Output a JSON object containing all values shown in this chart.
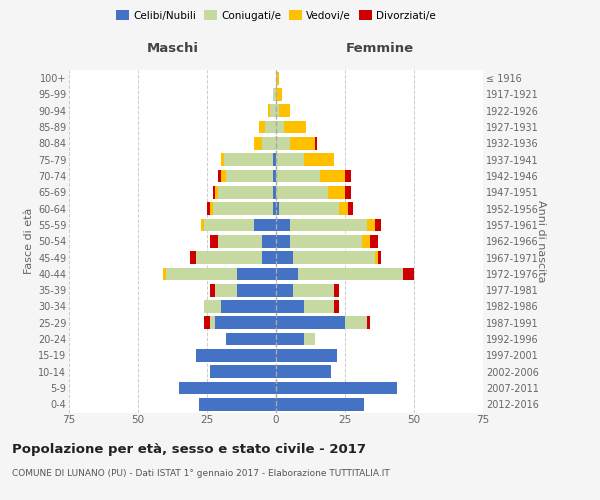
{
  "age_groups": [
    "0-4",
    "5-9",
    "10-14",
    "15-19",
    "20-24",
    "25-29",
    "30-34",
    "35-39",
    "40-44",
    "45-49",
    "50-54",
    "55-59",
    "60-64",
    "65-69",
    "70-74",
    "75-79",
    "80-84",
    "85-89",
    "90-94",
    "95-99",
    "100+"
  ],
  "birth_years": [
    "2012-2016",
    "2007-2011",
    "2002-2006",
    "1997-2001",
    "1992-1996",
    "1987-1991",
    "1982-1986",
    "1977-1981",
    "1972-1976",
    "1967-1971",
    "1962-1966",
    "1957-1961",
    "1952-1956",
    "1947-1951",
    "1942-1946",
    "1937-1941",
    "1932-1936",
    "1927-1931",
    "1922-1926",
    "1917-1921",
    "≤ 1916"
  ],
  "male_celibe": [
    28,
    35,
    24,
    29,
    18,
    22,
    20,
    14,
    14,
    5,
    5,
    8,
    1,
    1,
    1,
    1,
    0,
    0,
    0,
    0,
    0
  ],
  "male_coniugato": [
    0,
    0,
    0,
    0,
    0,
    2,
    6,
    8,
    26,
    24,
    16,
    18,
    22,
    20,
    17,
    18,
    5,
    4,
    2,
    1,
    0
  ],
  "male_vedovo": [
    0,
    0,
    0,
    0,
    0,
    0,
    0,
    0,
    1,
    0,
    0,
    1,
    1,
    1,
    2,
    1,
    3,
    2,
    1,
    0,
    0
  ],
  "male_divorziato": [
    0,
    0,
    0,
    0,
    0,
    2,
    0,
    2,
    0,
    2,
    3,
    0,
    1,
    1,
    1,
    0,
    0,
    0,
    0,
    0,
    0
  ],
  "female_celibe": [
    32,
    44,
    20,
    22,
    10,
    25,
    10,
    6,
    8,
    6,
    5,
    5,
    1,
    0,
    0,
    0,
    0,
    0,
    0,
    0,
    0
  ],
  "female_coniugata": [
    0,
    0,
    0,
    0,
    4,
    8,
    11,
    15,
    38,
    30,
    26,
    28,
    22,
    19,
    16,
    10,
    5,
    3,
    1,
    0,
    0
  ],
  "female_vedova": [
    0,
    0,
    0,
    0,
    0,
    0,
    0,
    0,
    0,
    1,
    3,
    3,
    3,
    6,
    9,
    11,
    9,
    8,
    4,
    2,
    1
  ],
  "female_divorziata": [
    0,
    0,
    0,
    0,
    0,
    1,
    2,
    2,
    4,
    1,
    3,
    2,
    2,
    2,
    2,
    0,
    1,
    0,
    0,
    0,
    0
  ],
  "colors": {
    "celibe": "#4472c4",
    "coniugato": "#c5d9a0",
    "vedovo": "#ffc000",
    "divorziato": "#cc0000"
  },
  "title": "Popolazione per età, sesso e stato civile - 2017",
  "subtitle": "COMUNE DI LUNANO (PU) - Dati ISTAT 1° gennaio 2017 - Elaborazione TUTTITALIA.IT",
  "label_maschi": "Maschi",
  "label_femmine": "Femmine",
  "ylabel_left": "Fasce di età",
  "ylabel_right": "Anni di nascita",
  "xlim": 75,
  "bg_color": "#f5f5f5",
  "plot_bg_color": "#ffffff",
  "legend_labels": [
    "Celibi/Nubili",
    "Coniugati/e",
    "Vedovi/e",
    "Divorziati/e"
  ]
}
